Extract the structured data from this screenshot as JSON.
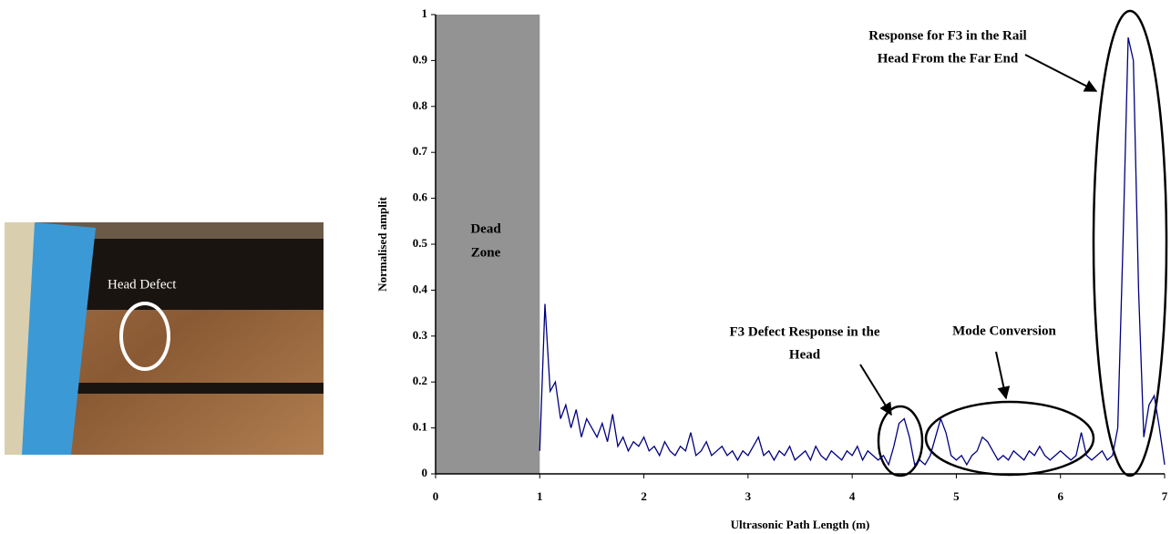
{
  "photo": {
    "label": "Head Defect"
  },
  "chart_data": {
    "type": "line",
    "x_label": "Ultrasonic Path Length (m)",
    "y_label": "Normalised amplit",
    "xlim": [
      0,
      7
    ],
    "xticks": [
      0,
      1,
      2,
      3,
      4,
      5,
      6,
      7
    ],
    "ylim": [
      0,
      1
    ],
    "yticks": [
      0,
      0.1,
      0.2,
      0.3,
      0.4,
      0.5,
      0.6,
      0.7,
      0.8,
      0.9,
      1
    ],
    "shaded_region": {
      "x": [
        0,
        1
      ],
      "color": "#939393"
    },
    "annotations": [
      {
        "lines": [
          "Dead",
          "Zone"
        ]
      },
      {
        "lines": [
          "F3 Defect Response in the",
          "Head"
        ]
      },
      {
        "lines": [
          "Mode Conversion"
        ]
      },
      {
        "lines": [
          "Response for F3 in the Rail",
          "Head From the Far End"
        ]
      }
    ],
    "x": [
      1.0,
      1.05,
      1.1,
      1.15,
      1.2,
      1.25,
      1.3,
      1.35,
      1.4,
      1.45,
      1.5,
      1.55,
      1.6,
      1.65,
      1.7,
      1.75,
      1.8,
      1.85,
      1.9,
      1.95,
      2.0,
      2.05,
      2.1,
      2.15,
      2.2,
      2.25,
      2.3,
      2.35,
      2.4,
      2.45,
      2.5,
      2.55,
      2.6,
      2.65,
      2.7,
      2.75,
      2.8,
      2.85,
      2.9,
      2.95,
      3.0,
      3.05,
      3.1,
      3.15,
      3.2,
      3.25,
      3.3,
      3.35,
      3.4,
      3.45,
      3.5,
      3.55,
      3.6,
      3.65,
      3.7,
      3.75,
      3.8,
      3.85,
      3.9,
      3.95,
      4.0,
      4.05,
      4.1,
      4.15,
      4.2,
      4.25,
      4.3,
      4.35,
      4.4,
      4.45,
      4.5,
      4.55,
      4.6,
      4.65,
      4.7,
      4.75,
      4.8,
      4.85,
      4.9,
      4.95,
      5.0,
      5.05,
      5.1,
      5.15,
      5.2,
      5.25,
      5.3,
      5.35,
      5.4,
      5.45,
      5.5,
      5.55,
      5.6,
      5.65,
      5.7,
      5.75,
      5.8,
      5.85,
      5.9,
      5.95,
      6.0,
      6.05,
      6.1,
      6.15,
      6.2,
      6.25,
      6.3,
      6.35,
      6.4,
      6.45,
      6.5,
      6.55,
      6.6,
      6.65,
      6.7,
      6.75,
      6.8,
      6.85,
      6.9,
      6.95,
      7.0
    ],
    "series": [
      {
        "color": "#00007f",
        "values": [
          0.05,
          0.37,
          0.18,
          0.2,
          0.12,
          0.15,
          0.1,
          0.14,
          0.08,
          0.12,
          0.1,
          0.08,
          0.11,
          0.07,
          0.13,
          0.06,
          0.08,
          0.05,
          0.07,
          0.06,
          0.08,
          0.05,
          0.06,
          0.04,
          0.07,
          0.05,
          0.04,
          0.06,
          0.05,
          0.09,
          0.04,
          0.05,
          0.07,
          0.04,
          0.05,
          0.06,
          0.04,
          0.05,
          0.03,
          0.05,
          0.04,
          0.06,
          0.08,
          0.04,
          0.05,
          0.03,
          0.05,
          0.04,
          0.06,
          0.03,
          0.04,
          0.05,
          0.03,
          0.06,
          0.04,
          0.03,
          0.05,
          0.04,
          0.03,
          0.05,
          0.04,
          0.06,
          0.03,
          0.05,
          0.04,
          0.03,
          0.04,
          0.02,
          0.06,
          0.11,
          0.12,
          0.08,
          0.02,
          0.03,
          0.02,
          0.04,
          0.08,
          0.12,
          0.09,
          0.04,
          0.03,
          0.04,
          0.02,
          0.04,
          0.05,
          0.08,
          0.07,
          0.05,
          0.03,
          0.04,
          0.03,
          0.05,
          0.04,
          0.03,
          0.05,
          0.04,
          0.06,
          0.04,
          0.03,
          0.04,
          0.05,
          0.04,
          0.03,
          0.04,
          0.09,
          0.04,
          0.03,
          0.04,
          0.05,
          0.03,
          0.04,
          0.1,
          0.5,
          0.95,
          0.9,
          0.4,
          0.08,
          0.15,
          0.17,
          0.1,
          0.02
        ]
      }
    ]
  }
}
